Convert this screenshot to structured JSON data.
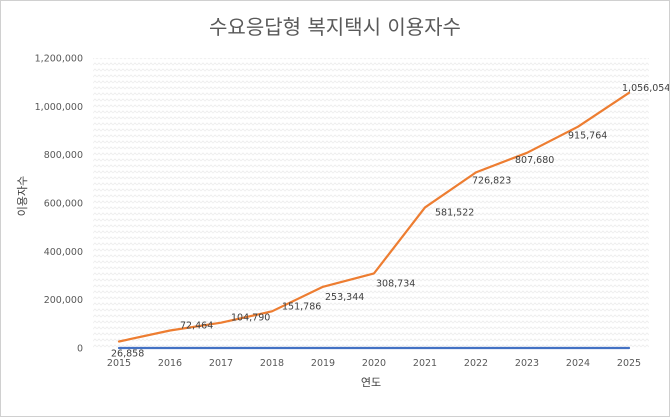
{
  "chart_data": {
    "type": "line",
    "title": "수요응답형 복지택시 이용자수",
    "xlabel": "연도",
    "ylabel": "이용자수",
    "ylim": [
      0,
      1200000
    ],
    "yticks": [
      "0",
      "200,000",
      "400,000",
      "600,000",
      "800,000",
      "1,000,000",
      "1,200,000"
    ],
    "categories": [
      "2015",
      "2016",
      "2017",
      "2018",
      "2019",
      "2020",
      "2021",
      "2022",
      "2023",
      "2024",
      "2025"
    ],
    "grid": false,
    "series": [
      {
        "color": "#ED7D31",
        "values": [
          26858,
          72464,
          104790,
          151786,
          253344,
          308734,
          581522,
          726823,
          807680,
          915764,
          1056054
        ],
        "labels": [
          "26,858",
          "72,464",
          "104,790",
          "151,786",
          "253,344",
          "308,734",
          "581,522",
          "726,823",
          "807,680",
          "915,764",
          "1,056,054"
        ]
      },
      {
        "color": "#4472C4",
        "values": [
          0,
          0,
          0,
          0,
          0,
          0,
          0,
          0,
          0,
          0,
          0
        ]
      }
    ]
  }
}
